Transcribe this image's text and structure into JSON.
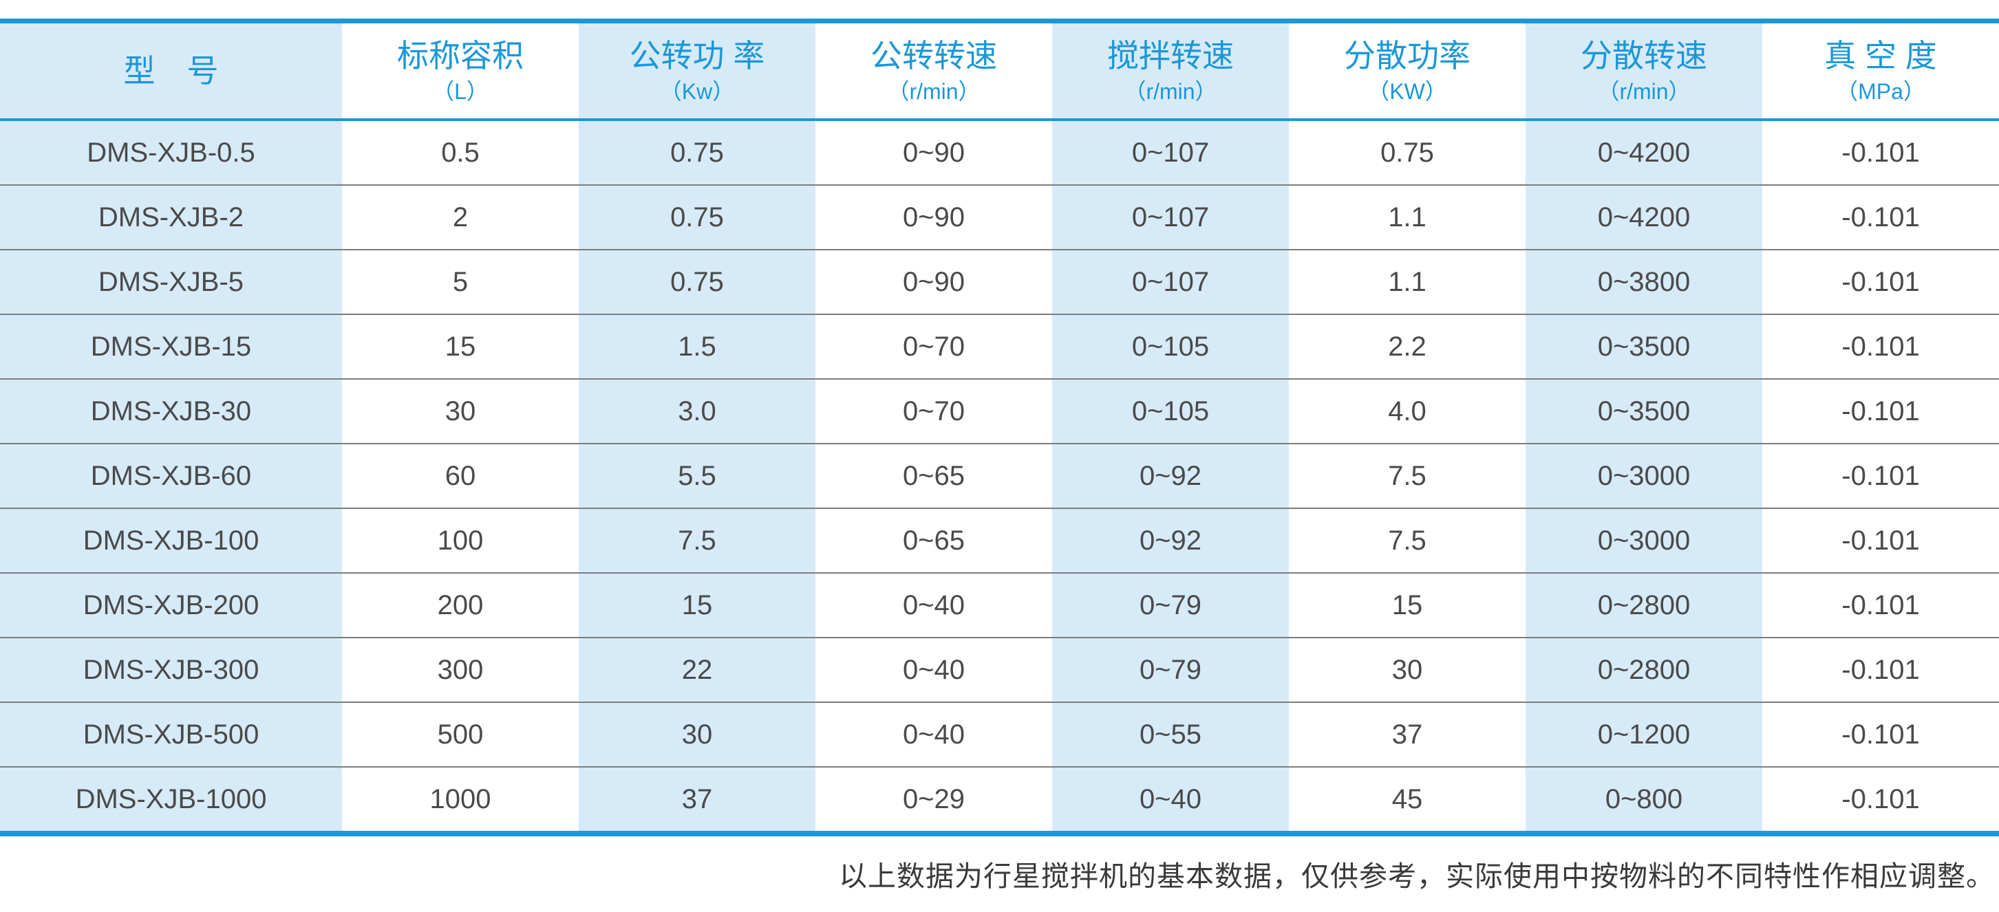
{
  "table": {
    "columns": [
      {
        "label": "型　号",
        "unit": ""
      },
      {
        "label": "标称容积",
        "unit": "（L）"
      },
      {
        "label": "公转功 率",
        "unit": "（Kw）"
      },
      {
        "label": "公转转速",
        "unit": "（r/min）"
      },
      {
        "label": "搅拌转速",
        "unit": "（r/min）"
      },
      {
        "label": "分散功率",
        "unit": "（KW）"
      },
      {
        "label": "分散转速",
        "unit": "（r/min）"
      },
      {
        "label": "真 空 度",
        "unit": "（MPa）"
      }
    ],
    "rows": [
      [
        "DMS-XJB-0.5",
        "0.5",
        "0.75",
        "0~90",
        "0~107",
        "0.75",
        "0~4200",
        "-0.101"
      ],
      [
        "DMS-XJB-2",
        "2",
        "0.75",
        "0~90",
        "0~107",
        "1.1",
        "0~4200",
        "-0.101"
      ],
      [
        "DMS-XJB-5",
        "5",
        "0.75",
        "0~90",
        "0~107",
        "1.1",
        "0~3800",
        "-0.101"
      ],
      [
        "DMS-XJB-15",
        "15",
        "1.5",
        "0~70",
        "0~105",
        "2.2",
        "0~3500",
        "-0.101"
      ],
      [
        "DMS-XJB-30",
        "30",
        "3.0",
        "0~70",
        "0~105",
        "4.0",
        "0~3500",
        "-0.101"
      ],
      [
        "DMS-XJB-60",
        "60",
        "5.5",
        "0~65",
        "0~92",
        "7.5",
        "0~3000",
        "-0.101"
      ],
      [
        "DMS-XJB-100",
        "100",
        "7.5",
        "0~65",
        "0~92",
        "7.5",
        "0~3000",
        "-0.101"
      ],
      [
        "DMS-XJB-200",
        "200",
        "15",
        "0~40",
        "0~79",
        "15",
        "0~2800",
        "-0.101"
      ],
      [
        "DMS-XJB-300",
        "300",
        "22",
        "0~40",
        "0~79",
        "30",
        "0~2800",
        "-0.101"
      ],
      [
        "DMS-XJB-500",
        "500",
        "30",
        "0~40",
        "0~55",
        "37",
        "0~1200",
        "-0.101"
      ],
      [
        "DMS-XJB-1000",
        "1000",
        "37",
        "0~29",
        "0~40",
        "45",
        "0~800",
        "-0.101"
      ]
    ]
  },
  "footer": {
    "note": "以上数据为行星搅拌机的基本数据，仅供参考，实际使用中按物料的不同特性作相应调整。"
  },
  "colors": {
    "accent_blue": "#1b97d8",
    "stripe_blue": "#d7eaf8",
    "body_text_gray": "#4a4a4a",
    "row_divider_gray": "#7d7d7d"
  }
}
